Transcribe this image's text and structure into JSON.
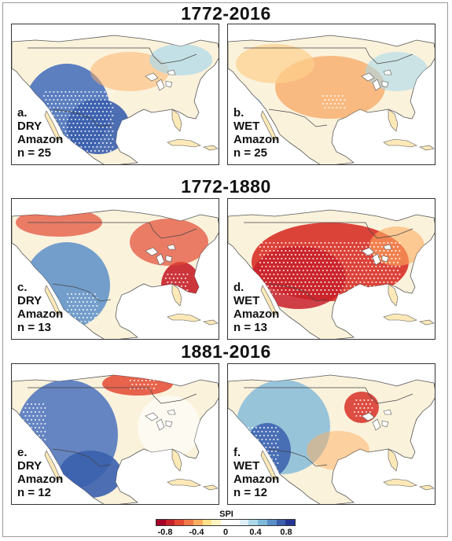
{
  "groups": [
    {
      "title": "1772-2016",
      "panels": [
        {
          "letter": "a.",
          "phase": "DRY",
          "region": "Amazon",
          "n": "n = 25"
        },
        {
          "letter": "b.",
          "phase": "WET",
          "region": "Amazon",
          "n": "n = 25"
        }
      ]
    },
    {
      "title": "1772-1880",
      "panels": [
        {
          "letter": "c.",
          "phase": "DRY",
          "region": "Amazon",
          "n": "n = 13"
        },
        {
          "letter": "d.",
          "phase": "WET",
          "region": "Amazon",
          "n": "n = 13"
        }
      ]
    },
    {
      "title": "1881-2016",
      "panels": [
        {
          "letter": "e.",
          "phase": "DRY",
          "region": "Amazon",
          "n": "n = 12"
        },
        {
          "letter": "f.",
          "phase": "WET",
          "region": "Amazon",
          "n": "n = 12"
        }
      ]
    }
  ],
  "legend": {
    "title": "SPI",
    "ticks": [
      "-0.8",
      "-0.4",
      "0",
      "0.4",
      "0.8"
    ],
    "colors": [
      "#a50026",
      "#c8202a",
      "#e34a33",
      "#f07a4a",
      "#fdae61",
      "#fee08b",
      "#fff3c0",
      "#ffffff",
      "#ffffff",
      "#e0f0f8",
      "#abd9e9",
      "#7fb8da",
      "#5a8fc8",
      "#3a5fad",
      "#253494"
    ]
  },
  "map_style": {
    "ocean": "#ffffff",
    "land": "#fbf2dc",
    "coast": "#555555",
    "dry_color": "#e23a2c",
    "wet_color": "#3f6cb8",
    "stipple": "#ffffff"
  }
}
